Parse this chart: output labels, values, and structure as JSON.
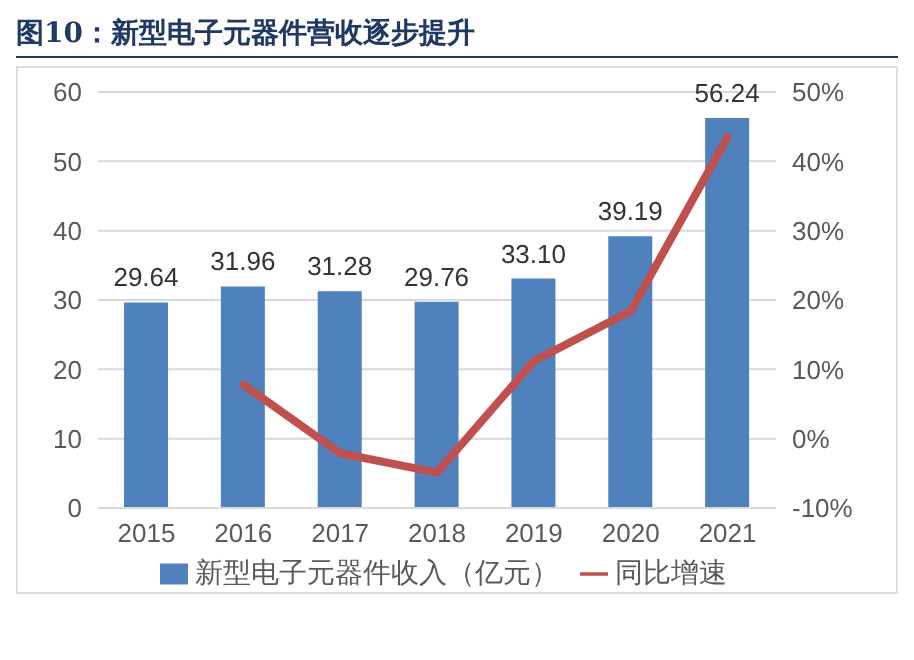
{
  "chart_data": {
    "type": "bar",
    "title": "图10：新型电子元器件营收逐步提升",
    "categories": [
      "2015",
      "2016",
      "2017",
      "2018",
      "2019",
      "2020",
      "2021"
    ],
    "series": [
      {
        "name": "新型电子元器件收入（亿元）",
        "color": "#4f81bd",
        "values": [
          29.64,
          31.96,
          31.28,
          29.76,
          33.1,
          39.19,
          56.24
        ],
        "value_labels": [
          "29.64",
          "31.96",
          "31.28",
          "29.76",
          "33.10",
          "39.19",
          "56.24"
        ]
      },
      {
        "name": "同比增速",
        "type": "line",
        "axis": "y2",
        "color": "#c0504d",
        "values": [
          null,
          7.8,
          -2.1,
          -4.9,
          11.2,
          18.4,
          43.5
        ]
      }
    ],
    "ylim": [
      0,
      60
    ],
    "yticks": [
      0,
      10,
      20,
      30,
      40,
      50,
      60
    ],
    "y2lim": [
      -10,
      50
    ],
    "y2ticks": [
      {
        "value": -10,
        "label": "-10%"
      },
      {
        "value": 0,
        "label": "0%"
      },
      {
        "value": 10,
        "label": "10%"
      },
      {
        "value": 20,
        "label": "20%"
      },
      {
        "value": 30,
        "label": "30%"
      },
      {
        "value": 40,
        "label": "40%"
      },
      {
        "value": 50,
        "label": "50%"
      }
    ],
    "grid": "y",
    "legend": "bottom",
    "marker": "none",
    "line_style": "solid"
  }
}
